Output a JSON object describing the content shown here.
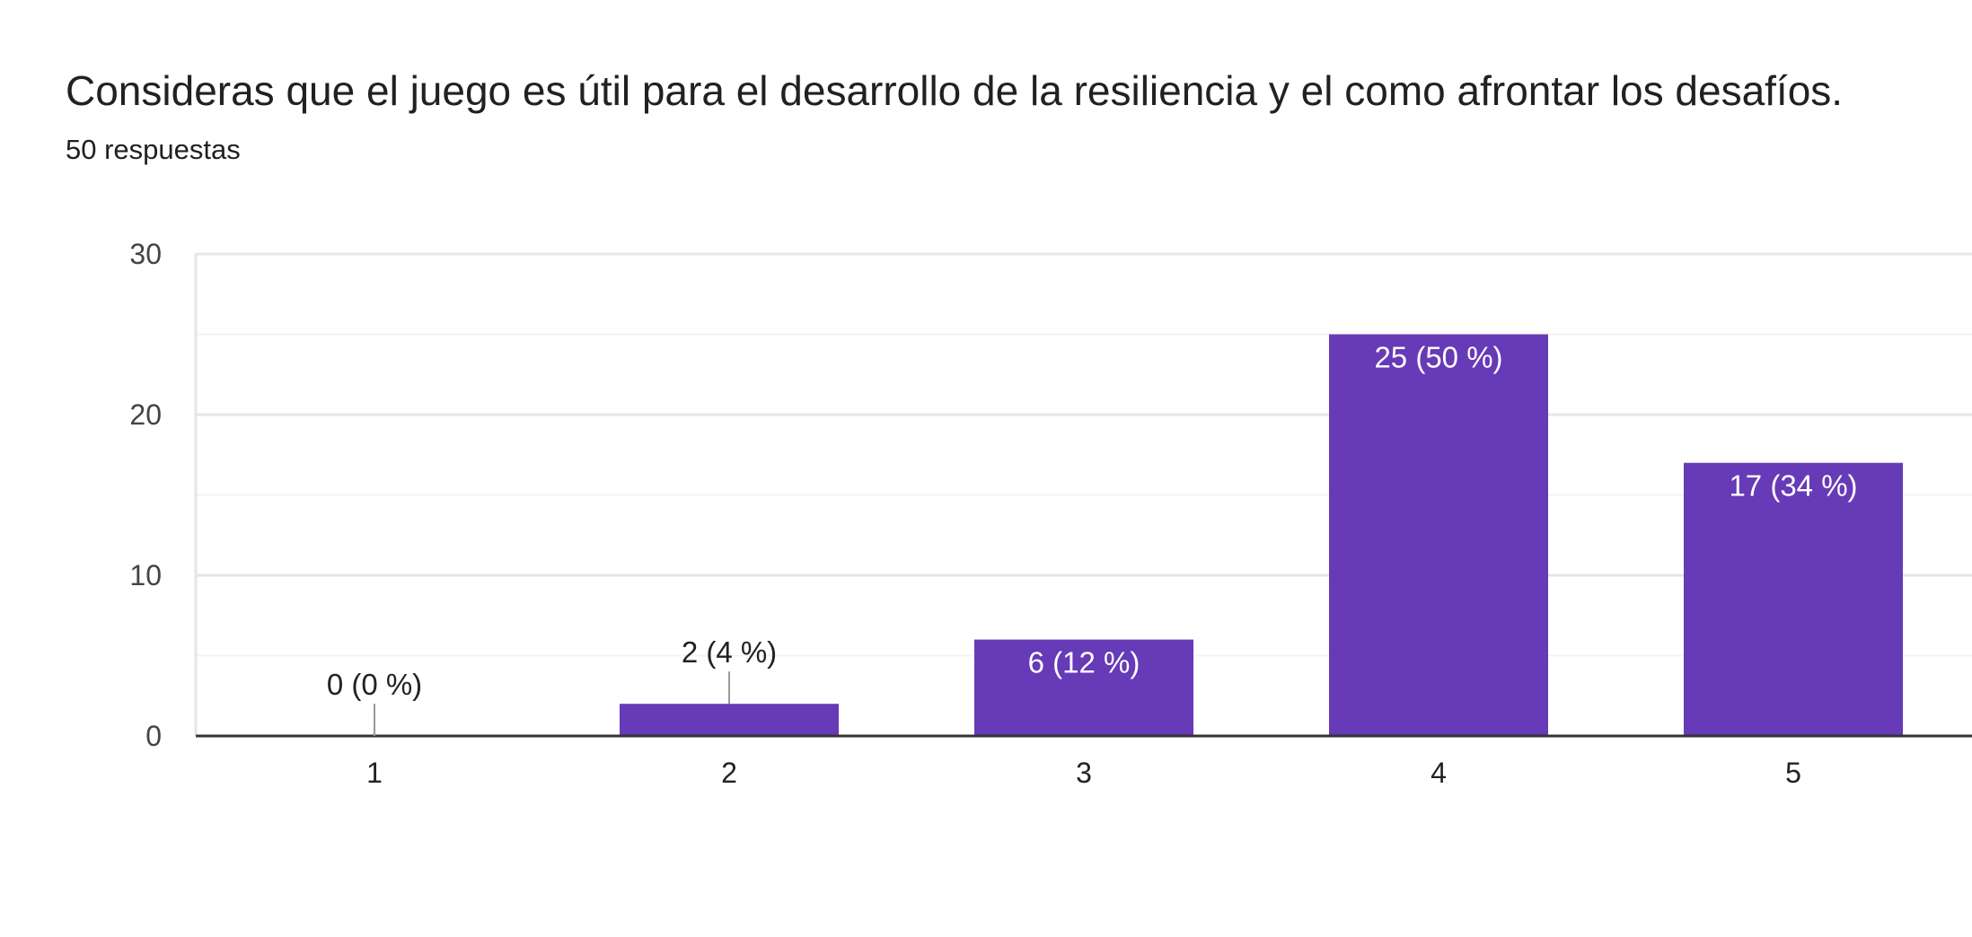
{
  "header": {
    "title": "Consideras que el juego es útil para el desarrollo de la resiliencia y el como afrontar los desafíos.",
    "responses": "50 respuestas"
  },
  "colors": {
    "bar": "#673ab7",
    "axis": "#333333",
    "grid_major": "#e6e6e6",
    "grid_minor": "#f3f3f3",
    "label_inside": "#ffffff",
    "label_outside": "#222222",
    "leader_line": "#999999"
  },
  "chart_data": {
    "type": "bar",
    "categories": [
      "1",
      "2",
      "3",
      "4",
      "5"
    ],
    "values": [
      0,
      2,
      6,
      25,
      17
    ],
    "data_labels": [
      "0 (0 %)",
      "2 (4 %)",
      "6 (12 %)",
      "25 (50 %)",
      "17 (34 %)"
    ],
    "ylim": [
      0,
      30
    ],
    "yticks": [
      0,
      10,
      20,
      30
    ],
    "minor_gridlines": [
      5,
      15,
      25
    ],
    "grid": true,
    "legend": "none"
  }
}
